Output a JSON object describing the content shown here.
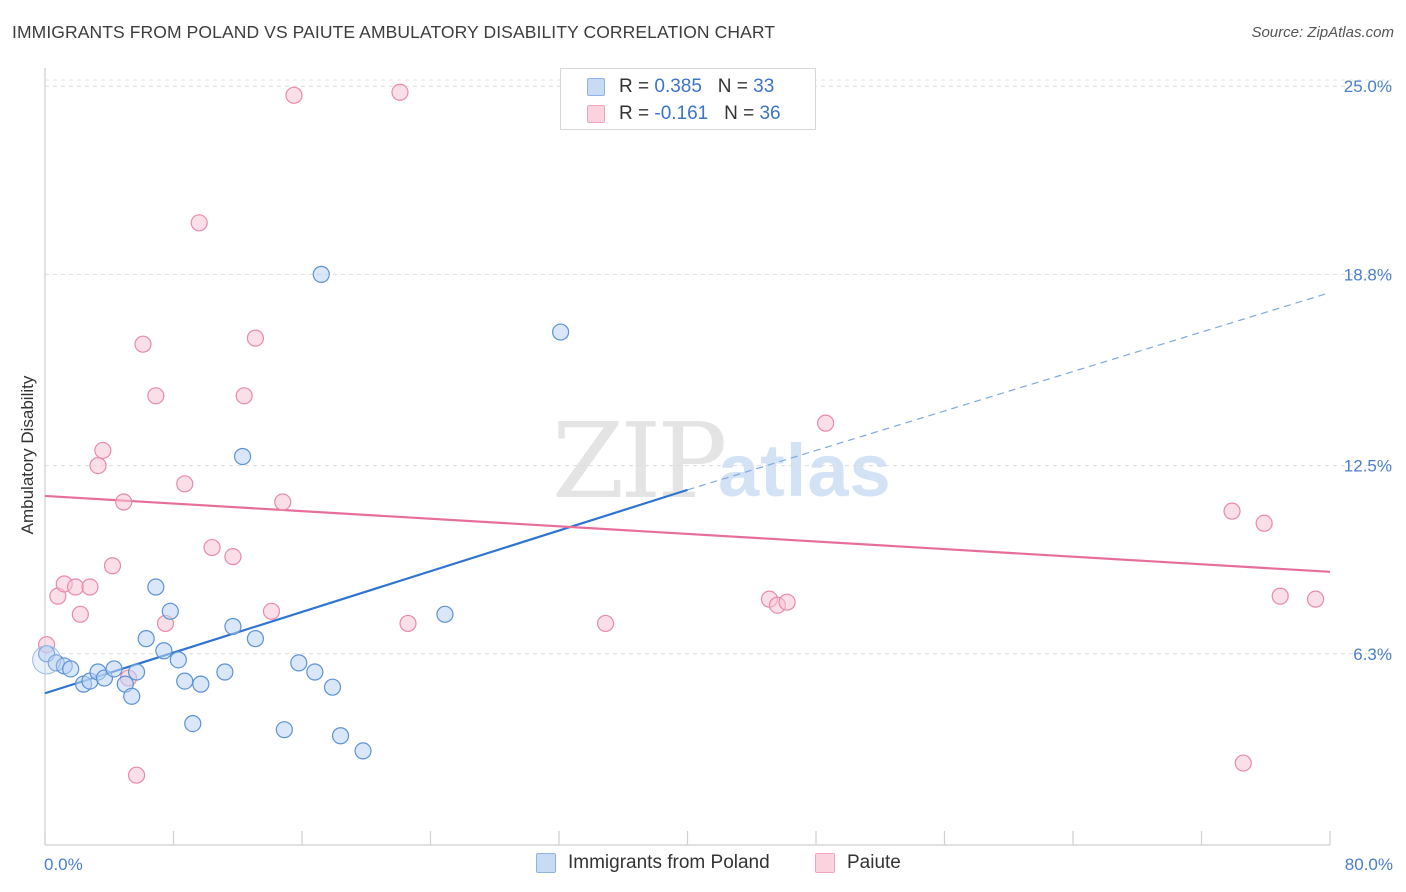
{
  "title": "IMMIGRANTS FROM POLAND VS PAIUTE AMBULATORY DISABILITY CORRELATION CHART",
  "source": "Source: ZipAtlas.com",
  "watermark": {
    "zip": "ZIP",
    "atlas": "atlas"
  },
  "stats": [
    {
      "r_label": "R = ",
      "r_value": "0.385",
      "n_label": "N = ",
      "n_value": "33",
      "color": "#a9c8f0"
    },
    {
      "r_label": "R = ",
      "r_value": "-0.161",
      "n_label": "N = ",
      "n_value": "36",
      "color": "#f6b8cb"
    }
  ],
  "legend": [
    {
      "label": "Immigrants from Poland",
      "color": "#a9c8f0"
    },
    {
      "label": "Paiute",
      "color": "#f6b8cb"
    }
  ],
  "chart_data": {
    "type": "scatter",
    "title": "IMMIGRANTS FROM POLAND VS PAIUTE AMBULATORY DISABILITY CORRELATION CHART",
    "xlabel": "",
    "ylabel": "Ambulatory Disability",
    "xlim": [
      0,
      80
    ],
    "ylim": [
      0,
      25.6
    ],
    "x_tick_labels": [
      "0.0%",
      "80.0%"
    ],
    "y_ticks": [
      6.3,
      12.5,
      18.8,
      25.0
    ],
    "y_tick_labels": [
      "6.3%",
      "12.5%",
      "18.8%",
      "25.0%"
    ],
    "series": [
      {
        "name": "Immigrants from Poland",
        "color": "#5b93d6",
        "fill": "#a9c8f0",
        "points": [
          [
            0.1,
            6.3
          ],
          [
            0.7,
            6.0
          ],
          [
            1.2,
            5.9
          ],
          [
            1.6,
            5.8
          ],
          [
            2.4,
            5.3
          ],
          [
            2.8,
            5.4
          ],
          [
            3.3,
            5.7
          ],
          [
            3.7,
            5.5
          ],
          [
            4.3,
            5.8
          ],
          [
            5.0,
            5.3
          ],
          [
            5.4,
            4.9
          ],
          [
            5.7,
            5.7
          ],
          [
            6.3,
            6.8
          ],
          [
            6.9,
            8.5
          ],
          [
            7.4,
            6.4
          ],
          [
            7.8,
            7.7
          ],
          [
            8.3,
            6.1
          ],
          [
            8.7,
            5.4
          ],
          [
            9.2,
            4.0
          ],
          [
            9.7,
            5.3
          ],
          [
            11.2,
            5.7
          ],
          [
            11.7,
            7.2
          ],
          [
            12.3,
            12.8
          ],
          [
            13.1,
            6.8
          ],
          [
            14.9,
            3.8
          ],
          [
            15.8,
            6.0
          ],
          [
            16.8,
            5.7
          ],
          [
            17.2,
            18.8
          ],
          [
            17.9,
            5.2
          ],
          [
            18.4,
            3.6
          ],
          [
            19.8,
            3.1
          ],
          [
            24.9,
            7.6
          ],
          [
            32.1,
            16.9
          ]
        ],
        "trend": {
          "x0": 0,
          "y0": 5.0,
          "x1": 40,
          "y1": 11.7,
          "dash_to_x": 80,
          "dash_to_y": 18.2
        }
      },
      {
        "name": "Paiute",
        "color": "#e56f9a",
        "fill": "#f6b8cb",
        "points": [
          [
            0.1,
            6.6
          ],
          [
            0.8,
            8.2
          ],
          [
            1.2,
            8.6
          ],
          [
            1.9,
            8.5
          ],
          [
            2.2,
            7.6
          ],
          [
            2.8,
            8.5
          ],
          [
            3.3,
            12.5
          ],
          [
            3.6,
            13.0
          ],
          [
            4.2,
            9.2
          ],
          [
            4.9,
            11.3
          ],
          [
            5.2,
            5.5
          ],
          [
            5.7,
            2.3
          ],
          [
            6.1,
            16.5
          ],
          [
            6.9,
            14.8
          ],
          [
            7.5,
            7.3
          ],
          [
            8.7,
            11.9
          ],
          [
            9.6,
            20.5
          ],
          [
            10.4,
            9.8
          ],
          [
            11.7,
            9.5
          ],
          [
            12.4,
            14.8
          ],
          [
            13.1,
            16.7
          ],
          [
            14.1,
            7.7
          ],
          [
            14.8,
            11.3
          ],
          [
            15.5,
            24.7
          ],
          [
            22.1,
            24.8
          ],
          [
            22.6,
            7.3
          ],
          [
            34.9,
            7.3
          ],
          [
            45.1,
            8.1
          ],
          [
            45.6,
            7.9
          ],
          [
            46.2,
            8.0
          ],
          [
            48.6,
            13.9
          ],
          [
            73.9,
            11.0
          ],
          [
            74.6,
            2.7
          ],
          [
            75.9,
            10.6
          ],
          [
            76.9,
            8.2
          ],
          [
            79.1,
            8.1
          ]
        ],
        "trend": {
          "x0": 0,
          "y0": 11.5,
          "x1": 80,
          "y1": 9.0
        }
      }
    ]
  }
}
